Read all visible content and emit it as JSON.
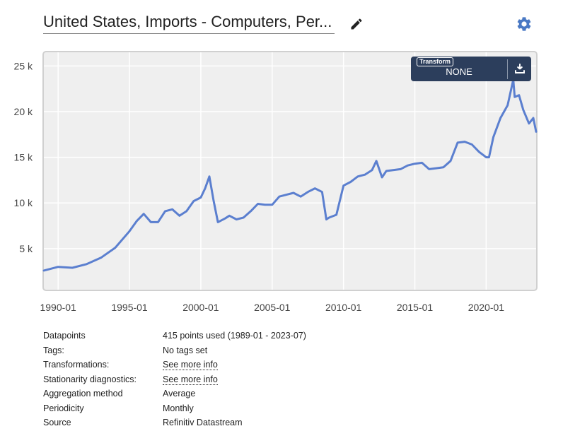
{
  "header": {
    "title": "United States, Imports - Computers, Per...",
    "edit_icon": "pencil-icon",
    "settings_icon": "gear-icon"
  },
  "transform": {
    "label": "Transform",
    "value": "NONE",
    "download_icon": "download-icon"
  },
  "colors": {
    "line": "#5b7fcf",
    "plot_bg": "#efefef",
    "transform_bg": "#2c3e5c"
  },
  "chart_data": {
    "type": "line",
    "title": "United States, Imports - Computers, Per...",
    "xlabel": "",
    "ylabel": "",
    "grid": true,
    "x_range": [
      1989.0,
      2023.5
    ],
    "ylim": [
      500,
      26500
    ],
    "x_ticks": [
      {
        "value": 1990.0,
        "label": "1990-01"
      },
      {
        "value": 1995.0,
        "label": "1995-01"
      },
      {
        "value": 2000.0,
        "label": "2000-01"
      },
      {
        "value": 2005.0,
        "label": "2005-01"
      },
      {
        "value": 2010.0,
        "label": "2010-01"
      },
      {
        "value": 2015.0,
        "label": "2015-01"
      },
      {
        "value": 2020.0,
        "label": "2020-01"
      }
    ],
    "y_ticks": [
      {
        "value": 5000,
        "label": "5 k"
      },
      {
        "value": 10000,
        "label": "10 k"
      },
      {
        "value": 15000,
        "label": "15 k"
      },
      {
        "value": 20000,
        "label": "20 k"
      },
      {
        "value": 25000,
        "label": "25 k"
      }
    ],
    "series": [
      {
        "name": "Imports - Computers, Peripherals",
        "x": [
          1989.0,
          1989.5,
          1990.0,
          1991.0,
          1992.0,
          1993.0,
          1994.0,
          1995.0,
          1995.5,
          1996.0,
          1996.5,
          1997.0,
          1997.5,
          1998.0,
          1998.5,
          1999.0,
          1999.5,
          2000.0,
          2000.3,
          2000.6,
          2000.9,
          2001.2,
          2001.7,
          2002.0,
          2002.5,
          2003.0,
          2003.5,
          2004.0,
          2004.5,
          2005.0,
          2005.5,
          2006.0,
          2006.5,
          2007.0,
          2007.5,
          2008.0,
          2008.5,
          2008.8,
          2009.0,
          2009.5,
          2010.0,
          2010.5,
          2011.0,
          2011.5,
          2012.0,
          2012.3,
          2012.7,
          2013.0,
          2014.0,
          2014.5,
          2015.0,
          2015.5,
          2016.0,
          2016.5,
          2017.0,
          2017.5,
          2018.0,
          2018.5,
          2019.0,
          2019.5,
          2020.0,
          2020.2,
          2020.5,
          2021.0,
          2021.5,
          2021.9,
          2022.0,
          2022.3,
          2022.6,
          2023.0,
          2023.3,
          2023.5
        ],
        "values": [
          2600,
          2800,
          3000,
          2900,
          3300,
          4000,
          5100,
          6900,
          8000,
          8800,
          7900,
          7900,
          9100,
          9300,
          8600,
          9100,
          10200,
          10600,
          11600,
          12900,
          10200,
          7900,
          8300,
          8600,
          8200,
          8400,
          9100,
          9900,
          9800,
          9800,
          10700,
          10900,
          11100,
          10700,
          11200,
          11600,
          11200,
          8200,
          8400,
          8700,
          11900,
          12300,
          12900,
          13100,
          13600,
          14600,
          12800,
          13500,
          13700,
          14100,
          14300,
          14400,
          13700,
          13800,
          13900,
          14600,
          16600,
          16700,
          16400,
          15600,
          15000,
          15000,
          17200,
          19300,
          20700,
          23500,
          21600,
          21800,
          20200,
          18700,
          19300,
          17800
        ]
      }
    ]
  },
  "metadata": [
    {
      "label": "Datapoints",
      "value": "415 points used (1989-01 - 2023-07)",
      "link": false
    },
    {
      "label": "Tags:",
      "value": "No tags set",
      "link": false
    },
    {
      "label": "Transformations:",
      "value": "See more info",
      "link": true
    },
    {
      "label": "Stationarity diagnostics:",
      "value": "See more info",
      "link": true
    },
    {
      "label": "Aggregation method",
      "value": "Average",
      "link": false
    },
    {
      "label": "Periodicity",
      "value": "Monthly",
      "link": false
    },
    {
      "label": "Source",
      "value": "Refinitiv Datastream",
      "link": false
    }
  ]
}
